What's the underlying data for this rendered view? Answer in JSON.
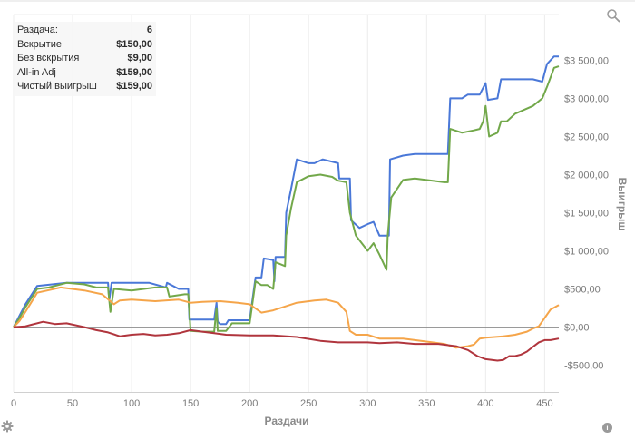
{
  "tooltip": {
    "rows": [
      {
        "label": "Раздача:",
        "value": "6"
      },
      {
        "label": "Вскрытие",
        "value": "$150,00"
      },
      {
        "label": "Без вскрытия",
        "value": "$9,00"
      },
      {
        "label": "All-in Adj",
        "value": "$159,00"
      },
      {
        "label": "Чистый выигрыш",
        "value": "$159,00"
      }
    ]
  },
  "icons": {
    "zoom": "magnifier-icon",
    "settings": "gear-icon",
    "info": "info-icon",
    "info_glyph": "i"
  },
  "chart_data": {
    "type": "line",
    "xlabel": "Раздачи",
    "ylabel": "Выигрыш",
    "xlim": [
      0,
      462
    ],
    "ylim": [
      -850,
      4100
    ],
    "x_ticks": [
      0,
      50,
      100,
      150,
      200,
      250,
      300,
      350,
      400,
      450
    ],
    "y_ticks": [
      -500,
      0,
      500,
      1000,
      1500,
      2000,
      2500,
      3000,
      3500
    ],
    "y_tick_labels": [
      "-$500,00",
      "$0,00",
      "$500,00",
      "$1 000,00",
      "$1 500,00",
      "$2 000,00",
      "$2 500,00",
      "$3 000,00",
      "$3 500,00"
    ],
    "grid": "vertical",
    "series": [
      {
        "color": "#4a78d8",
        "points": [
          [
            0,
            0
          ],
          [
            5,
            150
          ],
          [
            10,
            300
          ],
          [
            20,
            540
          ],
          [
            45,
            580
          ],
          [
            80,
            580
          ],
          [
            81,
            350
          ],
          [
            83,
            580
          ],
          [
            115,
            580
          ],
          [
            129,
            520
          ],
          [
            130,
            580
          ],
          [
            140,
            500
          ],
          [
            148,
            500
          ],
          [
            149,
            100
          ],
          [
            170,
            100
          ],
          [
            172,
            320
          ],
          [
            173,
            70
          ],
          [
            175,
            40
          ],
          [
            180,
            40
          ],
          [
            182,
            90
          ],
          [
            200,
            90
          ],
          [
            205,
            650
          ],
          [
            210,
            650
          ],
          [
            212,
            900
          ],
          [
            220,
            880
          ],
          [
            221,
            600
          ],
          [
            222,
            920
          ],
          [
            230,
            920
          ],
          [
            231,
            1500
          ],
          [
            235,
            1800
          ],
          [
            240,
            2200
          ],
          [
            250,
            2150
          ],
          [
            255,
            2150
          ],
          [
            262,
            2200
          ],
          [
            275,
            2150
          ],
          [
            276,
            1950
          ],
          [
            285,
            1950
          ],
          [
            286,
            1400
          ],
          [
            293,
            1300
          ],
          [
            300,
            1350
          ],
          [
            305,
            1380
          ],
          [
            310,
            1200
          ],
          [
            318,
            1200
          ],
          [
            319,
            2200
          ],
          [
            330,
            2250
          ],
          [
            340,
            2270
          ],
          [
            368,
            2270
          ],
          [
            370,
            3000
          ],
          [
            380,
            3000
          ],
          [
            385,
            3050
          ],
          [
            393,
            3050
          ],
          [
            395,
            3050
          ],
          [
            400,
            3200
          ],
          [
            402,
            2980
          ],
          [
            410,
            3000
          ],
          [
            413,
            3250
          ],
          [
            418,
            3250
          ],
          [
            440,
            3250
          ],
          [
            448,
            3220
          ],
          [
            452,
            3450
          ],
          [
            458,
            3550
          ],
          [
            462,
            3550
          ]
        ]
      },
      {
        "color": "#72a84a",
        "points": [
          [
            0,
            0
          ],
          [
            5,
            120
          ],
          [
            10,
            260
          ],
          [
            20,
            500
          ],
          [
            30,
            520
          ],
          [
            45,
            580
          ],
          [
            60,
            560
          ],
          [
            70,
            520
          ],
          [
            80,
            520
          ],
          [
            82,
            200
          ],
          [
            85,
            500
          ],
          [
            100,
            480
          ],
          [
            120,
            520
          ],
          [
            130,
            520
          ],
          [
            132,
            400
          ],
          [
            145,
            430
          ],
          [
            148,
            430
          ],
          [
            150,
            -50
          ],
          [
            160,
            -60
          ],
          [
            170,
            -60
          ],
          [
            172,
            250
          ],
          [
            173,
            -50
          ],
          [
            180,
            -50
          ],
          [
            185,
            50
          ],
          [
            200,
            50
          ],
          [
            205,
            600
          ],
          [
            210,
            550
          ],
          [
            215,
            550
          ],
          [
            220,
            500
          ],
          [
            222,
            850
          ],
          [
            230,
            800
          ],
          [
            231,
            1200
          ],
          [
            235,
            1550
          ],
          [
            240,
            1900
          ],
          [
            250,
            1980
          ],
          [
            260,
            2000
          ],
          [
            270,
            1970
          ],
          [
            275,
            1920
          ],
          [
            282,
            1900
          ],
          [
            285,
            1500
          ],
          [
            290,
            1200
          ],
          [
            295,
            1100
          ],
          [
            300,
            1000
          ],
          [
            305,
            1100
          ],
          [
            310,
            950
          ],
          [
            316,
            750
          ],
          [
            317,
            1200
          ],
          [
            320,
            1700
          ],
          [
            330,
            1930
          ],
          [
            340,
            1950
          ],
          [
            365,
            1900
          ],
          [
            368,
            1900
          ],
          [
            370,
            2600
          ],
          [
            380,
            2550
          ],
          [
            390,
            2580
          ],
          [
            395,
            2600
          ],
          [
            398,
            2700
          ],
          [
            400,
            2900
          ],
          [
            403,
            2500
          ],
          [
            410,
            2550
          ],
          [
            413,
            2700
          ],
          [
            418,
            2700
          ],
          [
            425,
            2800
          ],
          [
            440,
            2900
          ],
          [
            448,
            3000
          ],
          [
            452,
            3150
          ],
          [
            458,
            3400
          ],
          [
            462,
            3420
          ]
        ]
      },
      {
        "color": "#f5a54a",
        "points": [
          [
            0,
            0
          ],
          [
            5,
            80
          ],
          [
            10,
            200
          ],
          [
            20,
            450
          ],
          [
            40,
            520
          ],
          [
            60,
            480
          ],
          [
            75,
            430
          ],
          [
            85,
            300
          ],
          [
            90,
            350
          ],
          [
            100,
            360
          ],
          [
            120,
            340
          ],
          [
            140,
            360
          ],
          [
            150,
            320
          ],
          [
            160,
            330
          ],
          [
            175,
            340
          ],
          [
            190,
            320
          ],
          [
            200,
            300
          ],
          [
            210,
            190
          ],
          [
            220,
            220
          ],
          [
            240,
            320
          ],
          [
            255,
            350
          ],
          [
            265,
            360
          ],
          [
            275,
            320
          ],
          [
            282,
            200
          ],
          [
            285,
            -50
          ],
          [
            290,
            -100
          ],
          [
            300,
            -100
          ],
          [
            310,
            -150
          ],
          [
            330,
            -150
          ],
          [
            340,
            -170
          ],
          [
            355,
            -200
          ],
          [
            365,
            -220
          ],
          [
            375,
            -270
          ],
          [
            385,
            -250
          ],
          [
            390,
            -230
          ],
          [
            395,
            -150
          ],
          [
            400,
            -140
          ],
          [
            415,
            -120
          ],
          [
            425,
            -100
          ],
          [
            435,
            -60
          ],
          [
            440,
            -20
          ],
          [
            445,
            10
          ],
          [
            450,
            120
          ],
          [
            455,
            230
          ],
          [
            462,
            290
          ]
        ]
      },
      {
        "color": "#b0353d",
        "points": [
          [
            0,
            0
          ],
          [
            10,
            10
          ],
          [
            15,
            30
          ],
          [
            25,
            70
          ],
          [
            35,
            40
          ],
          [
            45,
            50
          ],
          [
            60,
            0
          ],
          [
            70,
            -40
          ],
          [
            80,
            -70
          ],
          [
            90,
            -120
          ],
          [
            100,
            -100
          ],
          [
            110,
            -90
          ],
          [
            120,
            -110
          ],
          [
            130,
            -100
          ],
          [
            140,
            -80
          ],
          [
            150,
            -40
          ],
          [
            160,
            -60
          ],
          [
            170,
            -80
          ],
          [
            180,
            -100
          ],
          [
            200,
            -110
          ],
          [
            220,
            -110
          ],
          [
            240,
            -130
          ],
          [
            260,
            -180
          ],
          [
            275,
            -200
          ],
          [
            290,
            -200
          ],
          [
            300,
            -200
          ],
          [
            310,
            -210
          ],
          [
            325,
            -200
          ],
          [
            340,
            -220
          ],
          [
            360,
            -220
          ],
          [
            375,
            -250
          ],
          [
            385,
            -300
          ],
          [
            393,
            -380
          ],
          [
            400,
            -420
          ],
          [
            410,
            -440
          ],
          [
            415,
            -430
          ],
          [
            420,
            -380
          ],
          [
            425,
            -380
          ],
          [
            430,
            -360
          ],
          [
            435,
            -320
          ],
          [
            440,
            -260
          ],
          [
            445,
            -200
          ],
          [
            450,
            -170
          ],
          [
            455,
            -170
          ],
          [
            462,
            -150
          ]
        ]
      }
    ]
  }
}
